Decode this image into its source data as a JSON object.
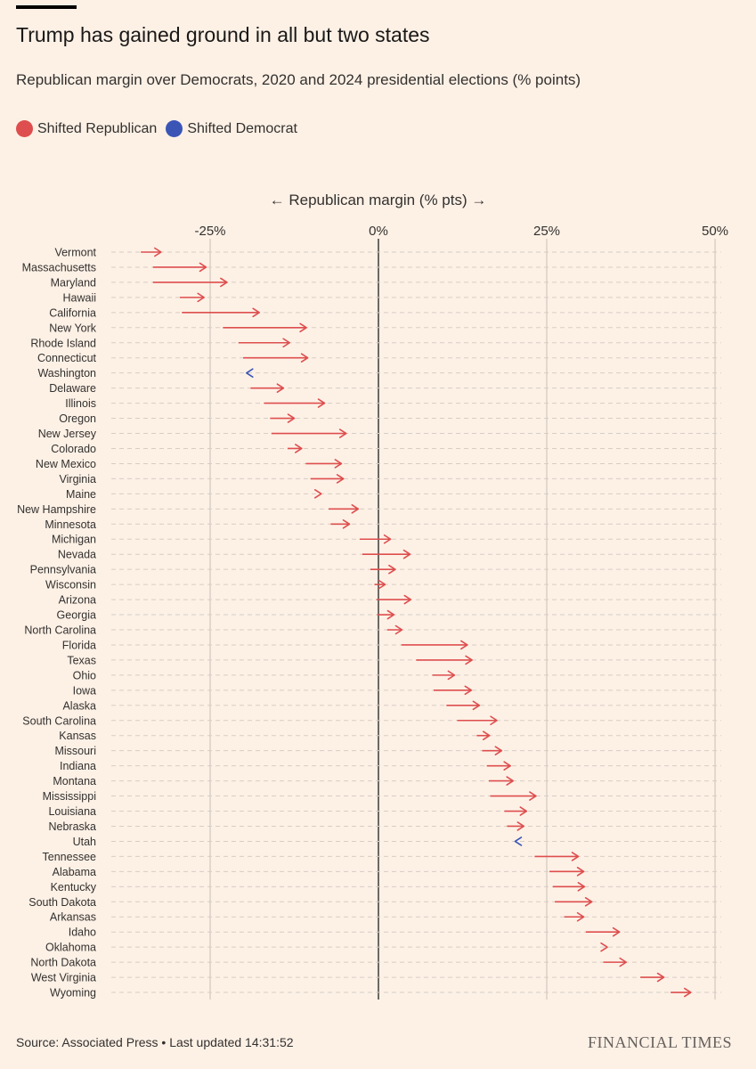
{
  "title": "Trump has gained ground in all but two states",
  "subtitle": "Republican margin over Democrats, 2020 and 2024 presidential elections (% points)",
  "legend": [
    {
      "label": "Shifted Republican",
      "color": "#de4e4e"
    },
    {
      "label": "Shifted Democrat",
      "color": "#3a55b6"
    }
  ],
  "axis_caption": "← Republican margin (% pts) →",
  "footer": {
    "source": "Source: Associated Press • Last updated 14:31:52",
    "brand": "FINANCIAL TIMES"
  },
  "colors": {
    "republican": "#de4e4e",
    "democrat": "#3a55b6",
    "background": "#fdf1e6"
  },
  "chart_data": {
    "type": "arrow",
    "xlabel": "Republican margin (% pts)",
    "xlim": [
      -37,
      50
    ],
    "ticks": [
      {
        "value": -25,
        "label": "-25%"
      },
      {
        "value": 0,
        "label": "0%"
      },
      {
        "value": 25,
        "label": "25%"
      },
      {
        "value": 50,
        "label": "50%"
      }
    ],
    "grid": true,
    "series_names": [
      "2020",
      "2024"
    ],
    "states": [
      {
        "name": "Vermont",
        "m2020": -35.3,
        "m2024": -32.3
      },
      {
        "name": "Massachusetts",
        "m2020": -33.5,
        "m2024": -25.6
      },
      {
        "name": "Maryland",
        "m2020": -33.5,
        "m2024": -22.5
      },
      {
        "name": "Hawaii",
        "m2020": -29.5,
        "m2024": -25.9
      },
      {
        "name": "California",
        "m2020": -29.2,
        "m2024": -17.7
      },
      {
        "name": "New York",
        "m2020": -23.1,
        "m2024": -10.7
      },
      {
        "name": "Rhode Island",
        "m2020": -20.8,
        "m2024": -13.2
      },
      {
        "name": "Connecticut",
        "m2020": -20.1,
        "m2024": -10.5
      },
      {
        "name": "Washington",
        "m2020": -19.2,
        "m2024": -19.6
      },
      {
        "name": "Delaware",
        "m2020": -19.0,
        "m2024": -14.1
      },
      {
        "name": "Illinois",
        "m2020": -17.0,
        "m2024": -8.0
      },
      {
        "name": "Oregon",
        "m2020": -16.1,
        "m2024": -12.5
      },
      {
        "name": "New Jersey",
        "m2020": -15.9,
        "m2024": -4.8
      },
      {
        "name": "Colorado",
        "m2020": -13.5,
        "m2024": -11.4
      },
      {
        "name": "New Mexico",
        "m2020": -10.8,
        "m2024": -5.5
      },
      {
        "name": "Virginia",
        "m2020": -10.1,
        "m2024": -5.2
      },
      {
        "name": "Maine",
        "m2020": -9.1,
        "m2024": -8.5
      },
      {
        "name": "New Hampshire",
        "m2020": -7.4,
        "m2024": -3.0
      },
      {
        "name": "Minnesota",
        "m2020": -7.1,
        "m2024": -4.3
      },
      {
        "name": "Michigan",
        "m2020": -2.8,
        "m2024": 1.8
      },
      {
        "name": "Nevada",
        "m2020": -2.4,
        "m2024": 4.7
      },
      {
        "name": "Pennsylvania",
        "m2020": -1.2,
        "m2024": 2.5
      },
      {
        "name": "Wisconsin",
        "m2020": -0.6,
        "m2024": 1.0
      },
      {
        "name": "Arizona",
        "m2020": -0.3,
        "m2024": 4.8
      },
      {
        "name": "Georgia",
        "m2020": -0.2,
        "m2024": 2.3
      },
      {
        "name": "North Carolina",
        "m2020": 1.3,
        "m2024": 3.5
      },
      {
        "name": "Florida",
        "m2020": 3.4,
        "m2024": 13.2
      },
      {
        "name": "Texas",
        "m2020": 5.6,
        "m2024": 13.9
      },
      {
        "name": "Ohio",
        "m2020": 8.0,
        "m2024": 11.3
      },
      {
        "name": "Iowa",
        "m2020": 8.2,
        "m2024": 13.8
      },
      {
        "name": "Alaska",
        "m2020": 10.1,
        "m2024": 15.0
      },
      {
        "name": "South Carolina",
        "m2020": 11.7,
        "m2024": 17.6
      },
      {
        "name": "Kansas",
        "m2020": 14.6,
        "m2024": 16.5
      },
      {
        "name": "Missouri",
        "m2020": 15.4,
        "m2024": 18.3
      },
      {
        "name": "Indiana",
        "m2020": 16.1,
        "m2024": 19.6
      },
      {
        "name": "Montana",
        "m2020": 16.4,
        "m2024": 20.0
      },
      {
        "name": "Mississippi",
        "m2020": 16.6,
        "m2024": 23.4
      },
      {
        "name": "Louisiana",
        "m2020": 18.7,
        "m2024": 22.0
      },
      {
        "name": "Nebraska",
        "m2020": 19.1,
        "m2024": 21.6
      },
      {
        "name": "Utah",
        "m2020": 20.7,
        "m2024": 20.3
      },
      {
        "name": "Tennessee",
        "m2020": 23.2,
        "m2024": 29.7
      },
      {
        "name": "Alabama",
        "m2020": 25.4,
        "m2024": 30.5
      },
      {
        "name": "Kentucky",
        "m2020": 25.9,
        "m2024": 30.6
      },
      {
        "name": "South Dakota",
        "m2020": 26.2,
        "m2024": 31.7
      },
      {
        "name": "Arkansas",
        "m2020": 27.6,
        "m2024": 30.5
      },
      {
        "name": "Idaho",
        "m2020": 30.8,
        "m2024": 35.8
      },
      {
        "name": "Oklahoma",
        "m2020": 33.1,
        "m2024": 34.0
      },
      {
        "name": "North Dakota",
        "m2020": 33.4,
        "m2024": 36.8
      },
      {
        "name": "West Virginia",
        "m2020": 38.9,
        "m2024": 42.4
      },
      {
        "name": "Wyoming",
        "m2020": 43.4,
        "m2024": 46.4
      }
    ]
  }
}
